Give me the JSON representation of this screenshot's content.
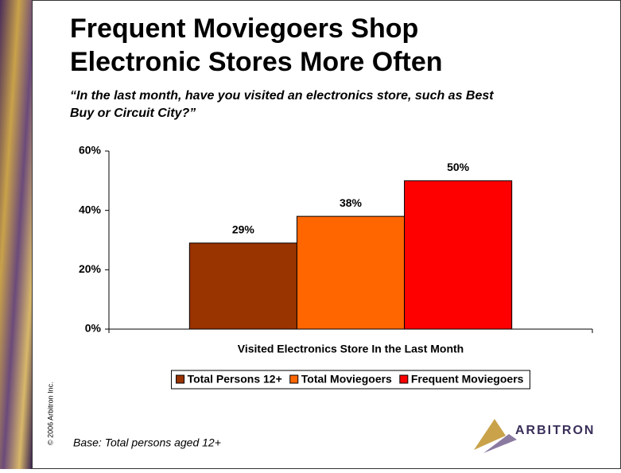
{
  "chart_data": {
    "type": "bar",
    "title": "Frequent Moviegoers Shop Electronic Stores More Often",
    "subtitle": "“In the last month, have you visited an electronics store, such as Best Buy or Circuit City?”",
    "categories": [
      "Visited Electronics Store In the Last Month"
    ],
    "series": [
      {
        "name": "Total Persons 12+",
        "color": "#993300",
        "values": [
          29
        ],
        "value_labels": [
          "29%"
        ]
      },
      {
        "name": "Total Moviegoers",
        "color": "#ff6600",
        "values": [
          38
        ],
        "value_labels": [
          "38%"
        ]
      },
      {
        "name": "Frequent Moviegoers",
        "color": "#ff0000",
        "values": [
          50
        ],
        "value_labels": [
          "50%"
        ]
      }
    ],
    "ylim": [
      0,
      60
    ],
    "yticks": [
      {
        "value": 0,
        "label": "0%"
      },
      {
        "value": 20,
        "label": "20%"
      },
      {
        "value": 40,
        "label": "40%"
      },
      {
        "value": 60,
        "label": "60%"
      }
    ],
    "legend": "bottom",
    "grid": false
  },
  "slide": {
    "copyright": "© 2006 Arbitron Inc.",
    "base_note": "Base:  Total persons aged 12+",
    "logo": "ARBITRON"
  }
}
